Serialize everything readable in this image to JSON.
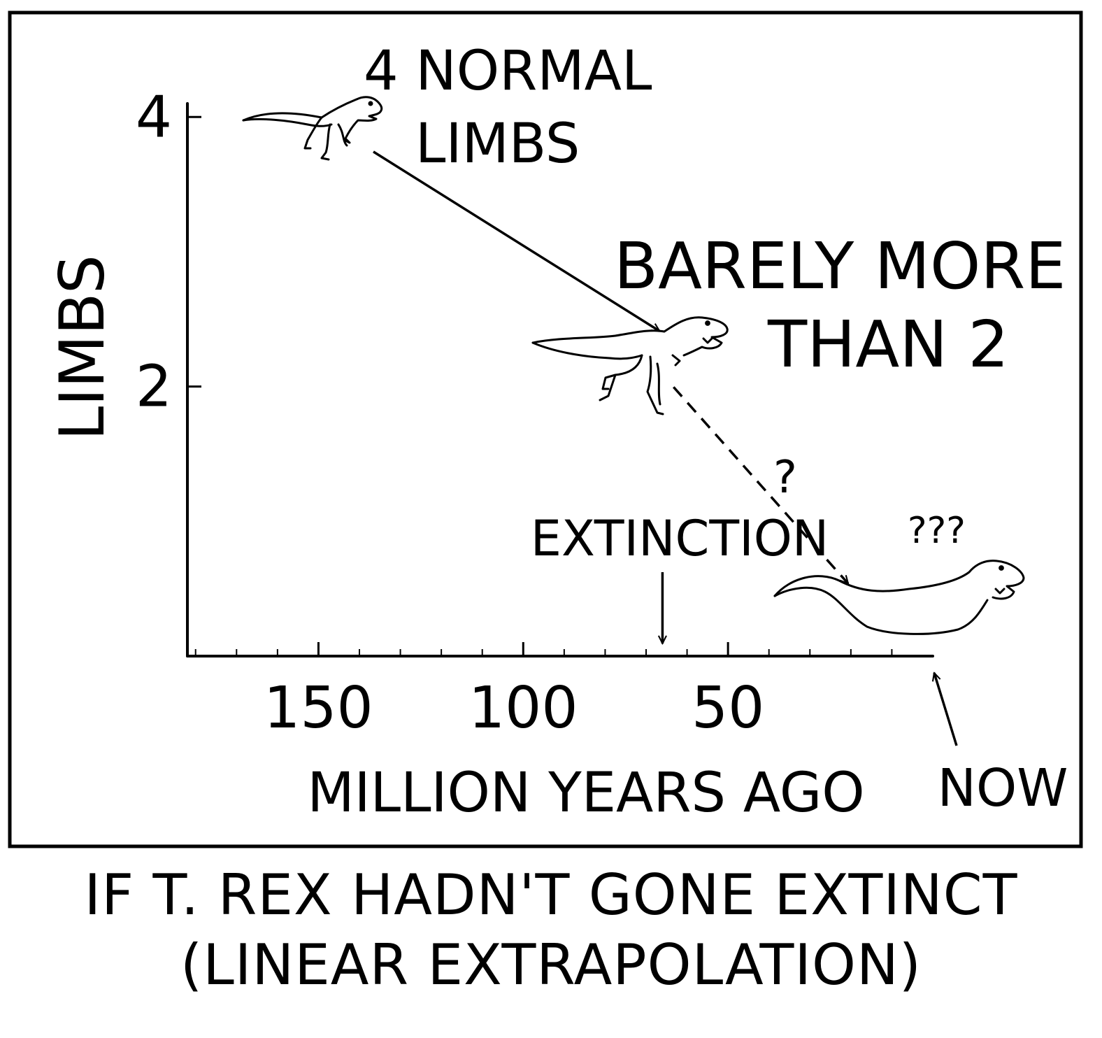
{
  "chart_data": {
    "type": "line",
    "title": "",
    "xlabel": "MILLION YEARS AGO",
    "ylabel": "LIMBS",
    "xlim": [
      182,
      0
    ],
    "ylim": [
      0,
      4.1
    ],
    "x_reversed": true,
    "grid": false,
    "x_ticks": [
      150,
      100,
      50
    ],
    "y_ticks": [
      4,
      2
    ],
    "series": [
      {
        "style": "solid",
        "points": [
          {
            "x": 140,
            "y": 3.95
          },
          {
            "x": 65,
            "y": 2.1
          }
        ]
      },
      {
        "style": "dashed",
        "points": [
          {
            "x": 65,
            "y": 2.1
          },
          {
            "x": 7,
            "y": 0.6
          }
        ]
      }
    ],
    "annotations": {
      "four_limbs": "4 NORMAL\nLIMBS",
      "barely_more": "BARELY MORE\nTHAN 2",
      "single_question": "?",
      "triple_question": "???",
      "extinction": "EXTINCTION",
      "extinction_x": 66,
      "now": "NOW",
      "now_x": 0
    }
  },
  "caption": {
    "line1": "IF T. REX HADN'T GONE EXTINCT",
    "line2": "(LINEAR EXTRAPOLATION)"
  },
  "icons": [
    "small-dinosaur-icon",
    "t-rex-icon",
    "limbless-t-rex-icon"
  ]
}
